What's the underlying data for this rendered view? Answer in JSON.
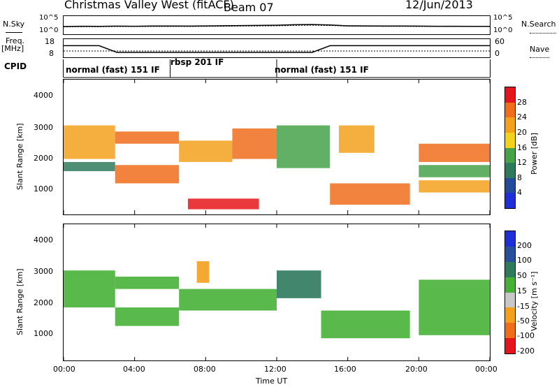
{
  "header": {
    "station": "Christmas Valley West (fitACF)",
    "beam": "Beam 07",
    "date": "12/Jun/2013"
  },
  "left_labels": {
    "nsky": "N.Sky",
    "freq": "Freq.",
    "freq_unit": "[MHz]",
    "cpid": "CPID"
  },
  "right_labels": {
    "nsearch": "N.Search",
    "nave": "Nave"
  },
  "noise_axis": {
    "left_top": "10^5",
    "left_bottom": "10^0",
    "right_top": "10^5",
    "right_bottom": "10^0"
  },
  "freq_axis": {
    "left_top": "18",
    "left_bottom": "8",
    "right_top": "60",
    "right_bottom": "0"
  },
  "cpid_segments": [
    {
      "label": "normal (fast) 151 IF",
      "start_hour": 0.0
    },
    {
      "label": "rbsp 201 IF",
      "start_hour": 6.0
    },
    {
      "label": "normal (fast) 151 IF",
      "start_hour": 12.0
    }
  ],
  "xaxis": {
    "label": "Time UT",
    "ticks": [
      "00:00",
      "04:00",
      "08:00",
      "12:00",
      "16:00",
      "20:00",
      "00:00"
    ]
  },
  "yaxis": {
    "label": "Slant Range [km]",
    "ticks": [
      "1000",
      "2000",
      "3000",
      "4000"
    ]
  },
  "power_colorbar": {
    "label": "Power [dB]",
    "ticks": [
      "4",
      "8",
      "12",
      "16",
      "20",
      "24",
      "28"
    ],
    "colors": [
      "#1f2ed6",
      "#244a9b",
      "#2e7a5d",
      "#47a24a",
      "#f0d31a",
      "#f3a11c",
      "#f06d1c",
      "#e5161b"
    ]
  },
  "velocity_colorbar": {
    "label": "Velocity [m s⁻¹]",
    "ticks": [
      "200",
      "100",
      "50",
      "15",
      "-15",
      "-50",
      "-100",
      "-200"
    ],
    "colors": [
      "#1f2ed6",
      "#2a4f9a",
      "#2e7a5d",
      "#47b137",
      "#c8c8c8",
      "#f3a11c",
      "#f06d1c",
      "#e5161b"
    ]
  },
  "chart_data": [
    {
      "type": "line",
      "panel": "noise",
      "x": [
        0,
        1,
        2,
        3,
        4,
        5,
        6,
        7,
        8,
        9,
        10,
        11,
        12,
        13,
        14,
        15,
        16,
        17,
        18,
        19,
        20,
        21,
        22,
        23,
        24
      ],
      "series": [
        {
          "name": "N.Sky",
          "values": [
            120,
            150,
            140,
            160,
            150,
            170,
            180,
            160,
            190,
            210,
            240,
            260,
            300,
            420,
            480,
            350,
            200,
            190,
            180,
            170,
            160,
            150,
            150,
            140,
            140
          ]
        },
        {
          "name": "N.Search",
          "values": [
            100,
            110,
            110,
            120,
            120,
            130,
            130,
            130,
            140,
            150,
            170,
            180,
            200,
            260,
            300,
            250,
            160,
            150,
            140,
            140,
            130,
            130,
            120,
            120,
            120
          ]
        }
      ],
      "ylim": [
        1,
        100000
      ]
    },
    {
      "type": "line",
      "panel": "frequency",
      "x": [
        0,
        1,
        2,
        3,
        4,
        5,
        6,
        7,
        8,
        9,
        10,
        11,
        12,
        13,
        14,
        15,
        16,
        17,
        18,
        19,
        20,
        21,
        22,
        23,
        24
      ],
      "series": [
        {
          "name": "Freq.",
          "values": [
            14.5,
            14.5,
            14.5,
            10.5,
            10.5,
            10.5,
            10.5,
            10.5,
            10.5,
            10.5,
            10.5,
            10.5,
            10.5,
            10.5,
            10.5,
            14.5,
            14.5,
            14.5,
            14.5,
            14.5,
            14.5,
            14.5,
            14.5,
            14.5,
            14.5
          ]
        },
        {
          "name": "Nave",
          "values": [
            22,
            22,
            22,
            22,
            22,
            22,
            22,
            22,
            22,
            22,
            22,
            22,
            22,
            22,
            22,
            22,
            22,
            22,
            22,
            22,
            22,
            22,
            22,
            22,
            22
          ]
        }
      ],
      "ylim": [
        8,
        18
      ]
    },
    {
      "type": "heatmap",
      "panel": "power",
      "title": "Power [dB]",
      "xlabel": "Time UT",
      "ylabel": "Slant Range [km]",
      "xlim": [
        0,
        24
      ],
      "ylim": [
        180,
        4600
      ],
      "bands": [
        {
          "t0": 0.0,
          "t1": 2.9,
          "r0": 2000,
          "r1": 3100,
          "db": 22
        },
        {
          "t0": 0.0,
          "t1": 2.9,
          "r0": 1600,
          "r1": 1900,
          "db": 10
        },
        {
          "t0": 2.9,
          "t1": 6.5,
          "r0": 1200,
          "r1": 1800,
          "db": 27
        },
        {
          "t0": 2.9,
          "t1": 6.5,
          "r0": 2500,
          "r1": 2900,
          "db": 24
        },
        {
          "t0": 6.5,
          "t1": 9.5,
          "r0": 1900,
          "r1": 2600,
          "db": 20
        },
        {
          "t0": 7.0,
          "t1": 11.0,
          "r0": 350,
          "r1": 700,
          "db": 28
        },
        {
          "t0": 9.5,
          "t1": 12.0,
          "r0": 2000,
          "r1": 3000,
          "db": 24
        },
        {
          "t0": 12.0,
          "t1": 15.0,
          "r0": 1700,
          "r1": 3100,
          "db": 12
        },
        {
          "t0": 15.0,
          "t1": 19.5,
          "r0": 500,
          "r1": 1200,
          "db": 24
        },
        {
          "t0": 15.5,
          "t1": 17.5,
          "r0": 2200,
          "r1": 3100,
          "db": 20
        },
        {
          "t0": 20.0,
          "t1": 24.0,
          "r0": 1900,
          "r1": 2500,
          "db": 24
        },
        {
          "t0": 20.0,
          "t1": 24.0,
          "r0": 900,
          "r1": 1300,
          "db": 20
        },
        {
          "t0": 20.0,
          "t1": 24.0,
          "r0": 1400,
          "r1": 1800,
          "db": 12
        }
      ]
    },
    {
      "type": "heatmap",
      "panel": "velocity",
      "title": "Velocity [m s⁻¹]",
      "xlabel": "Time UT",
      "ylabel": "Slant Range [km]",
      "xlim": [
        0,
        24
      ],
      "ylim": [
        180,
        4600
      ],
      "bands": [
        {
          "t0": 0.0,
          "t1": 2.9,
          "r0": 1900,
          "r1": 3100,
          "v": 0
        },
        {
          "t0": 2.9,
          "t1": 6.5,
          "r0": 1300,
          "r1": 1900,
          "v": 0
        },
        {
          "t0": 2.9,
          "t1": 6.5,
          "r0": 2500,
          "r1": 2900,
          "v": 0
        },
        {
          "t0": 6.5,
          "t1": 12.0,
          "r0": 1800,
          "r1": 2500,
          "v": 0
        },
        {
          "t0": 12.0,
          "t1": 14.5,
          "r0": 2200,
          "r1": 3100,
          "v": 40
        },
        {
          "t0": 14.5,
          "t1": 19.5,
          "r0": 900,
          "r1": 1800,
          "v": 0
        },
        {
          "t0": 20.0,
          "t1": 24.0,
          "r0": 1000,
          "r1": 2800,
          "v": 0
        },
        {
          "t0": 7.5,
          "t1": 8.2,
          "r0": 2700,
          "r1": 3400,
          "v": -60
        }
      ]
    }
  ]
}
